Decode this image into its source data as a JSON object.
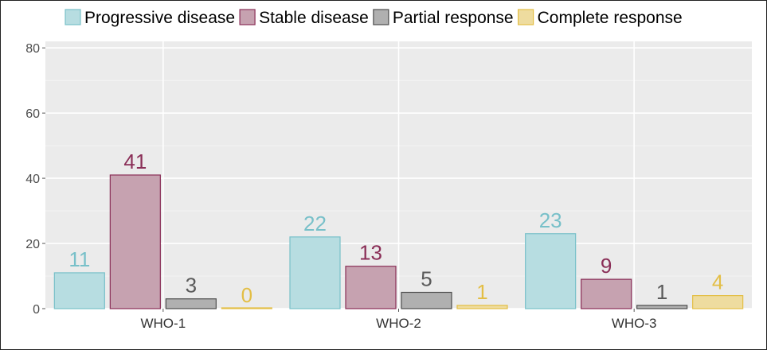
{
  "chart_data": {
    "type": "bar",
    "categories": [
      "WHO-1",
      "WHO-2",
      "WHO-3"
    ],
    "series": [
      {
        "name": "Progressive disease",
        "values": [
          11,
          22,
          23
        ],
        "fill": "#b7dde1",
        "stroke": "#78c0c9",
        "label_color": "#78c0c9"
      },
      {
        "name": "Stable disease",
        "values": [
          41,
          13,
          9
        ],
        "fill": "#c6a2b0",
        "stroke": "#8a2e57",
        "label_color": "#8a2e57"
      },
      {
        "name": "Partial response",
        "values": [
          3,
          5,
          1
        ],
        "fill": "#b0b0b0",
        "stroke": "#4d4d4d",
        "label_color": "#5a5a5a"
      },
      {
        "name": "Complete response",
        "values": [
          0,
          1,
          4
        ],
        "fill": "#eedc9f",
        "stroke": "#e3be45",
        "label_color": "#e3be45"
      }
    ],
    "ylim": [
      0,
      82
    ],
    "yticks": [
      0,
      20,
      40,
      60,
      80
    ],
    "ytick_labels": [
      "0",
      "20",
      "40",
      "60",
      "80"
    ],
    "xlabel": "",
    "ylabel": "",
    "title": "",
    "legend_position": "top",
    "grid": true,
    "panel_background": "#ebebeb",
    "grid_color": "#f6f6f6"
  }
}
